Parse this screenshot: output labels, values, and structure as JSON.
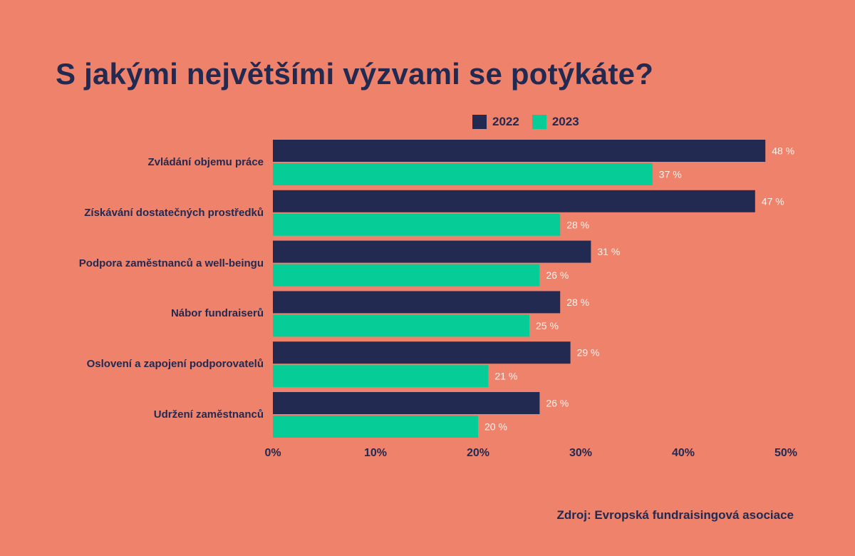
{
  "chart_data": {
    "type": "bar",
    "orientation": "horizontal",
    "title": "S jakými největšími výzvami se potýkáte?",
    "categories": [
      "Zvládání objemu práce",
      "Získávání dostatečných prostředků",
      "Podpora zaměstnanců a well-beingu",
      "Nábor fundraiserů",
      "Oslovení a zapojení podporovatelů",
      "Udržení zaměstnanců"
    ],
    "series": [
      {
        "name": "2022",
        "color": "#222A52",
        "values": [
          48,
          47,
          31,
          28,
          29,
          26
        ]
      },
      {
        "name": "2023",
        "color": "#06CC98",
        "values": [
          37,
          28,
          26,
          25,
          21,
          20
        ]
      }
    ],
    "data_labels": [
      [
        "48 %",
        "47 %",
        "31 %",
        "28 %",
        "29 %",
        "26 %"
      ],
      [
        "37 %",
        "28 %",
        "26 %",
        "25 %",
        "21 %",
        "20 %"
      ]
    ],
    "xlim": [
      0,
      50
    ],
    "ticks": [
      0,
      10,
      20,
      30,
      40,
      50
    ],
    "tick_labels": [
      "0%",
      "10%",
      "20%",
      "30%",
      "40%",
      "50%"
    ],
    "xlabel": "",
    "ylabel": "",
    "grid": false,
    "legend_position": "top"
  },
  "source": "Zdroj: Evropská fundraisingová asociace",
  "colors": {
    "background": "#EF826B",
    "dark": "#222A52",
    "green": "#06CC98",
    "label_light": "#FFF3EE"
  }
}
